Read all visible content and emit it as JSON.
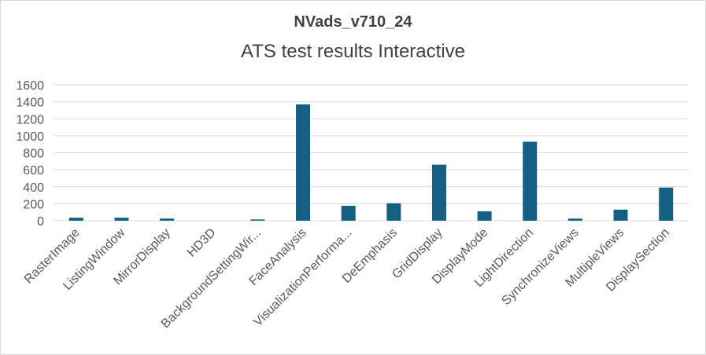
{
  "chart_data": {
    "type": "bar",
    "title": "NVads_v710_24",
    "subtitle": "ATS test results Interactive",
    "categories": [
      "RasterImage",
      "ListingWindow",
      "MirrorDisplay",
      "HD3D",
      "BackgroundSettingWir...",
      "FaceAnalysis",
      "VisualizationPerforma...",
      "DeEmphasis",
      "GridDisplay",
      "DisplayMode",
      "LightDirection",
      "SynchronizeViews",
      "MultipleViews",
      "DisplaySection"
    ],
    "values": [
      35,
      35,
      25,
      0,
      15,
      1370,
      175,
      205,
      660,
      110,
      930,
      25,
      130,
      390
    ],
    "ylim": [
      0,
      1600
    ],
    "yticks": [
      0,
      200,
      400,
      600,
      800,
      1000,
      1200,
      1400,
      1600
    ],
    "grid": true,
    "legend": "none",
    "bar_color": "#156082",
    "grid_color": "#d9d9d9",
    "text_color": "#595959"
  }
}
